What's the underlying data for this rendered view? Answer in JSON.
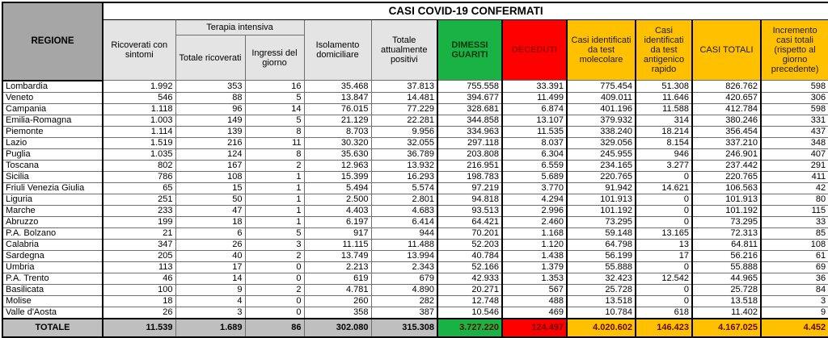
{
  "colors": {
    "recovered_green": "#19b244",
    "deceased_red": "#fe0000",
    "totals_gold": "#ffc000",
    "header_gray": "#a6a6a6",
    "subheader_gray": "#e4e4e4",
    "total_row_gray": "#bfbfbf"
  },
  "chart_data": {
    "type": "table",
    "title": "CASI COVID-19 CONFERMATI",
    "headers": {
      "region": "REGIONE",
      "ricoverati": "Ricoverati con sintomi",
      "terapia_group": "Terapia intensiva",
      "terapia_totale": "Totale ricoverati",
      "terapia_ingressi": "Ingressi del giorno",
      "isolamento": "Isolamento domiciliare",
      "positivi": "Totale attualmente positivi",
      "dimessi": "DIMESSI GUARITI",
      "deceduti": "DECEDUTI",
      "molecolare": "Casi identificati da test molecolare",
      "antigenico": "Casi identificati da test antigenico rapido",
      "casi_totali": "CASI TOTALI",
      "incremento": "Incremento casi totali (rispetto al giorno precedente)"
    },
    "rows": [
      [
        "Lombardia",
        "1.992",
        "353",
        "16",
        "35.468",
        "37.813",
        "755.558",
        "33.391",
        "775.454",
        "51.308",
        "826.762",
        "598"
      ],
      [
        "Veneto",
        "546",
        "88",
        "5",
        "13.847",
        "14.481",
        "394.677",
        "11.499",
        "409.011",
        "11.646",
        "420.657",
        "306"
      ],
      [
        "Campania",
        "1.118",
        "96",
        "14",
        "76.015",
        "77.229",
        "328.681",
        "6.874",
        "401.196",
        "11.588",
        "412.784",
        "598"
      ],
      [
        "Emilia-Romagna",
        "1.003",
        "149",
        "5",
        "21.129",
        "22.281",
        "344.858",
        "13.107",
        "379.932",
        "314",
        "380.246",
        "331"
      ],
      [
        "Piemonte",
        "1.114",
        "139",
        "8",
        "8.703",
        "9.956",
        "334.963",
        "11.535",
        "338.240",
        "18.214",
        "356.454",
        "437"
      ],
      [
        "Lazio",
        "1.519",
        "216",
        "11",
        "30.320",
        "32.055",
        "297.118",
        "8.037",
        "329.056",
        "8.154",
        "337.210",
        "348"
      ],
      [
        "Puglia",
        "1.035",
        "124",
        "8",
        "35.630",
        "36.789",
        "203.808",
        "6.304",
        "245.955",
        "946",
        "246.901",
        "407"
      ],
      [
        "Toscana",
        "802",
        "167",
        "2",
        "12.963",
        "13.932",
        "216.951",
        "6.559",
        "234.165",
        "3.277",
        "237.442",
        "291"
      ],
      [
        "Sicilia",
        "786",
        "108",
        "1",
        "15.399",
        "16.293",
        "198.783",
        "5.689",
        "220.765",
        "0",
        "220.765",
        "411"
      ],
      [
        "Friuli Venezia Giulia",
        "65",
        "15",
        "1",
        "5.494",
        "5.574",
        "97.219",
        "3.770",
        "91.942",
        "14.621",
        "106.563",
        "42"
      ],
      [
        "Liguria",
        "251",
        "50",
        "1",
        "2.500",
        "2.801",
        "94.818",
        "4.294",
        "101.913",
        "0",
        "101.913",
        "80"
      ],
      [
        "Marche",
        "233",
        "47",
        "1",
        "4.403",
        "4.683",
        "93.513",
        "2.996",
        "101.192",
        "0",
        "101.192",
        "115"
      ],
      [
        "Abruzzo",
        "199",
        "18",
        "1",
        "6.197",
        "6.414",
        "64.421",
        "2.460",
        "73.295",
        "0",
        "73.295",
        "33"
      ],
      [
        "P.A. Bolzano",
        "21",
        "6",
        "5",
        "917",
        "944",
        "70.201",
        "1.168",
        "59.148",
        "13.165",
        "72.313",
        "85"
      ],
      [
        "Calabria",
        "347",
        "26",
        "3",
        "11.115",
        "11.488",
        "52.203",
        "1.120",
        "64.798",
        "13",
        "64.811",
        "108"
      ],
      [
        "Sardegna",
        "205",
        "40",
        "2",
        "13.749",
        "13.994",
        "40.784",
        "1.438",
        "56.199",
        "17",
        "56.216",
        "61"
      ],
      [
        "Umbria",
        "113",
        "17",
        "0",
        "2.213",
        "2.343",
        "52.166",
        "1.379",
        "55.888",
        "0",
        "55.888",
        "69"
      ],
      [
        "P.A. Trento",
        "46",
        "14",
        "0",
        "619",
        "679",
        "42.933",
        "1.353",
        "32.423",
        "12.542",
        "44.965",
        "36"
      ],
      [
        "Basilicata",
        "100",
        "9",
        "2",
        "4.781",
        "4.890",
        "20.271",
        "567",
        "25.728",
        "0",
        "25.728",
        "84"
      ],
      [
        "Molise",
        "18",
        "4",
        "0",
        "260",
        "282",
        "12.748",
        "488",
        "13.518",
        "0",
        "13.518",
        "3"
      ],
      [
        "Valle d'Aosta",
        "26",
        "3",
        "0",
        "358",
        "387",
        "10.546",
        "469",
        "10.784",
        "618",
        "11.402",
        "9"
      ]
    ],
    "total_row": [
      "TOTALE",
      "11.539",
      "1.689",
      "86",
      "302.080",
      "315.308",
      "3.727.220",
      "124.497",
      "4.020.602",
      "146.423",
      "4.167.025",
      "4.452"
    ]
  }
}
